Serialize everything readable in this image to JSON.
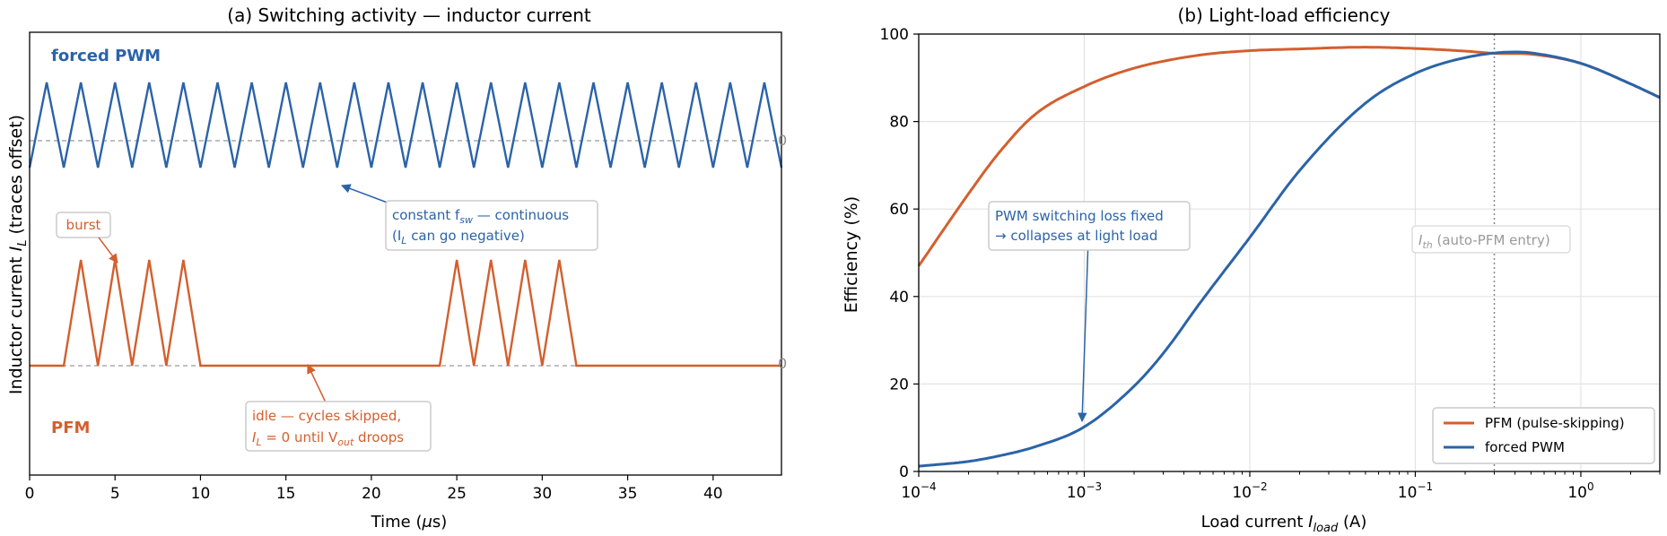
{
  "chart_data": [
    {
      "type": "line",
      "title": "(a) Switching activity — inductor current",
      "xlabel": "Time (μs)",
      "ylabel": "Inductor current I_L  (traces offset)",
      "xlim": [
        0,
        44
      ],
      "xticks": [
        "0",
        "5",
        "10",
        "15",
        "20",
        "25",
        "30",
        "35",
        "40"
      ],
      "grid": false,
      "series": [
        {
          "name": "forced PWM",
          "color": "#2b63a8",
          "description": "triangle wave, period 2 μs, peaks at odd μs, valleys at even μs, continuous",
          "period": 2,
          "peak_times": [
            1,
            3,
            5,
            7,
            9,
            11,
            13,
            15,
            17,
            19,
            21,
            23,
            25,
            27,
            29,
            31,
            33,
            35,
            37,
            39,
            41,
            43
          ]
        },
        {
          "name": "PFM",
          "color": "#d35f2e",
          "description": "bursts of 4 triangle pulses, then idle at I_L = 0",
          "bursts": [
            [
              2,
              10
            ],
            [
              24,
              32
            ]
          ],
          "peak_times": [
            3,
            5,
            7,
            9,
            25,
            27,
            29,
            31
          ]
        }
      ],
      "annotations": [
        {
          "text": "burst",
          "color": "#d35f2e"
        },
        {
          "text_line1": "constant f",
          "sub1": "sw",
          "text_line1b": " — continuous",
          "text_line2a": "(I",
          "sub2": "L",
          "text_line2b": " can go negative)",
          "color": "#2b63a8"
        },
        {
          "text_line1": "idle — cycles skipped,",
          "text_line2a": "I",
          "sub2": "L",
          "text_line2b": " = 0 until V",
          "sub3": "out",
          "text_line2c": " droops",
          "color": "#d35f2e"
        }
      ],
      "trace_labels": {
        "top": "forced PWM",
        "bottom": "PFM"
      },
      "zero_marks": [
        "0",
        "0"
      ]
    },
    {
      "type": "line",
      "title": "(b) Light-load efficiency",
      "xlabel": "Load current I_load (A)",
      "ylabel": "Efficiency (%)",
      "xscale": "log",
      "xlim": [
        0.0001,
        3
      ],
      "ylim": [
        0,
        100
      ],
      "yticks": [
        "0",
        "20",
        "40",
        "60",
        "80",
        "100"
      ],
      "xtick_values": [
        0.0001,
        0.001,
        0.01,
        0.1,
        1
      ],
      "grid": true,
      "legend": "lower-right",
      "series": [
        {
          "name": "PFM (pulse-skipping)",
          "color": "#d35f2e",
          "x": [
            0.0001,
            0.0002,
            0.0003,
            0.0005,
            0.001,
            0.002,
            0.005,
            0.01,
            0.02,
            0.05,
            0.1,
            0.2,
            0.3,
            0.5,
            1,
            2,
            3
          ],
          "y": [
            47,
            63.5,
            72.5,
            81.5,
            88,
            92.2,
            95.2,
            96.2,
            96.6,
            97,
            96.7,
            96.1,
            95.6,
            95.4,
            93.3,
            88.6,
            85.5
          ]
        },
        {
          "name": "forced PWM",
          "color": "#2b63a8",
          "x": [
            0.0001,
            0.0002,
            0.0003,
            0.0005,
            0.001,
            0.002,
            0.003,
            0.005,
            0.01,
            0.02,
            0.05,
            0.1,
            0.2,
            0.4,
            0.5,
            1,
            2,
            3
          ],
          "y": [
            1.2,
            2.3,
            3.5,
            5.6,
            10.2,
            19.5,
            27,
            38.5,
            53.5,
            68.8,
            84.2,
            91,
            94.6,
            95.9,
            95.7,
            93.3,
            88.6,
            85.5
          ]
        }
      ],
      "annotations": [
        {
          "text_line1": "PWM switching loss fixed",
          "text_line2": "→ collapses at light load",
          "color": "#2b63a8"
        },
        {
          "text_a": "I",
          "sub": "th",
          "text_b": " (auto-PFM entry)",
          "color": "#999999",
          "x": 0.3
        }
      ]
    }
  ]
}
